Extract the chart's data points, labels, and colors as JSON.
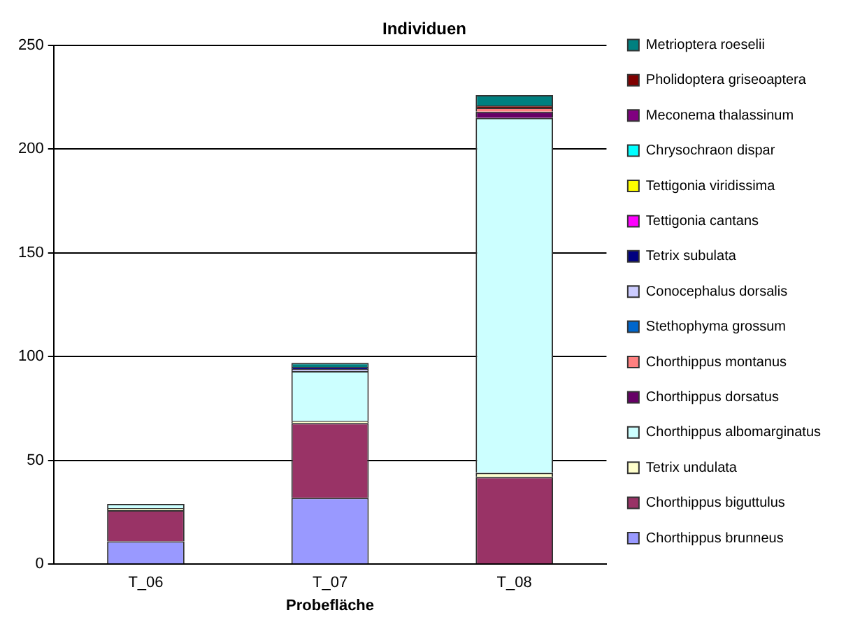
{
  "chart_data": {
    "type": "bar",
    "title": "Individuen",
    "xlabel": "Probefläche",
    "categories": [
      "T_06",
      "T_07",
      "T_08"
    ],
    "stacked": true,
    "ylim": [
      0,
      250
    ],
    "yticks": [
      0,
      50,
      100,
      150,
      200,
      250
    ],
    "grid": "y",
    "legend": "right",
    "series": [
      {
        "name": "Chorthippus brunneus",
        "color": "#9999ff",
        "values": [
          11,
          32,
          0
        ]
      },
      {
        "name": "Chorthippus biguttulus",
        "color": "#993366",
        "values": [
          15,
          36,
          42
        ]
      },
      {
        "name": "Tetrix undulata",
        "color": "#ffffcc",
        "values": [
          1,
          1,
          2
        ]
      },
      {
        "name": "Chorthippus albomarginatus",
        "color": "#ccffff",
        "values": [
          2,
          24,
          171
        ]
      },
      {
        "name": "Chorthippus dorsatus",
        "color": "#660066",
        "values": [
          0,
          0,
          3
        ]
      },
      {
        "name": "Chorthippus montanus",
        "color": "#ff8080",
        "values": [
          0,
          0,
          2
        ]
      },
      {
        "name": "Stethophyma grossum",
        "color": "#0066cc",
        "values": [
          0,
          0,
          0
        ]
      },
      {
        "name": "Conocephalus dorsalis",
        "color": "#ccccff",
        "values": [
          0,
          1,
          0
        ]
      },
      {
        "name": "Tetrix subulata",
        "color": "#000080",
        "values": [
          0,
          1,
          0
        ]
      },
      {
        "name": "Tettigonia cantans",
        "color": "#ff00ff",
        "values": [
          0,
          0,
          0
        ]
      },
      {
        "name": "Tettigonia viridissima",
        "color": "#ffff00",
        "values": [
          0,
          0,
          0
        ]
      },
      {
        "name": "Chrysochraon dispar",
        "color": "#00ffff",
        "values": [
          0,
          0,
          0
        ]
      },
      {
        "name": "Meconema thalassinum",
        "color": "#800080",
        "values": [
          0,
          0,
          0
        ]
      },
      {
        "name": "Pholidoptera griseoaptera",
        "color": "#800000",
        "values": [
          0,
          0,
          1
        ]
      },
      {
        "name": "Metrioptera roeselii",
        "color": "#008080",
        "values": [
          0,
          2,
          5
        ]
      }
    ]
  }
}
